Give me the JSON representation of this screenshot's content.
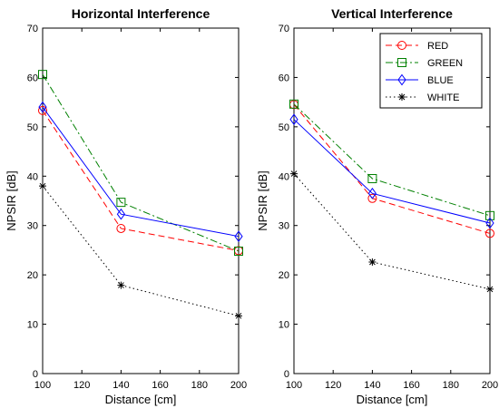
{
  "chart_data": [
    {
      "type": "line",
      "title": "Horizontal Interference",
      "xlabel": "Distance [cm]",
      "ylabel": "NPSIR [dB]",
      "xlim": [
        100,
        200
      ],
      "ylim": [
        0,
        70
      ],
      "xticks": [
        100,
        120,
        140,
        160,
        180,
        200
      ],
      "yticks": [
        0,
        10,
        20,
        30,
        40,
        50,
        60,
        70
      ],
      "x": [
        100,
        140,
        200
      ],
      "grid": false,
      "legend": null,
      "series": [
        {
          "name": "RED",
          "color": "#ff0000",
          "dash": "dashed",
          "marker": "circle",
          "values": [
            53.3,
            29.4,
            24.9
          ]
        },
        {
          "name": "GREEN",
          "color": "#008000",
          "dash": "dashdot",
          "marker": "square",
          "values": [
            60.6,
            34.7,
            24.8
          ]
        },
        {
          "name": "BLUE",
          "color": "#0000ff",
          "dash": "solid",
          "marker": "diamond",
          "values": [
            54.0,
            32.3,
            27.8
          ]
        },
        {
          "name": "WHITE",
          "color": "#000000",
          "dash": "dotted",
          "marker": "star",
          "values": [
            38.0,
            17.9,
            11.7
          ]
        }
      ]
    },
    {
      "type": "line",
      "title": "Vertical Interference",
      "xlabel": "Distance [cm]",
      "ylabel": "NPSIR [dB]",
      "xlim": [
        100,
        200
      ],
      "ylim": [
        0,
        70
      ],
      "xticks": [
        100,
        120,
        140,
        160,
        180,
        200
      ],
      "yticks": [
        0,
        10,
        20,
        30,
        40,
        50,
        60,
        70
      ],
      "x": [
        100,
        140,
        200
      ],
      "grid": false,
      "legend": "top-right",
      "series": [
        {
          "name": "RED",
          "color": "#ff0000",
          "dash": "dashed",
          "marker": "circle",
          "values": [
            54.5,
            35.5,
            28.4
          ]
        },
        {
          "name": "GREEN",
          "color": "#008000",
          "dash": "dashdot",
          "marker": "square",
          "values": [
            54.6,
            39.5,
            32.0
          ]
        },
        {
          "name": "BLUE",
          "color": "#0000ff",
          "dash": "solid",
          "marker": "diamond",
          "values": [
            51.5,
            36.5,
            30.5
          ]
        },
        {
          "name": "WHITE",
          "color": "#000000",
          "dash": "dotted",
          "marker": "star",
          "values": [
            40.5,
            22.6,
            17.1
          ]
        }
      ]
    }
  ]
}
